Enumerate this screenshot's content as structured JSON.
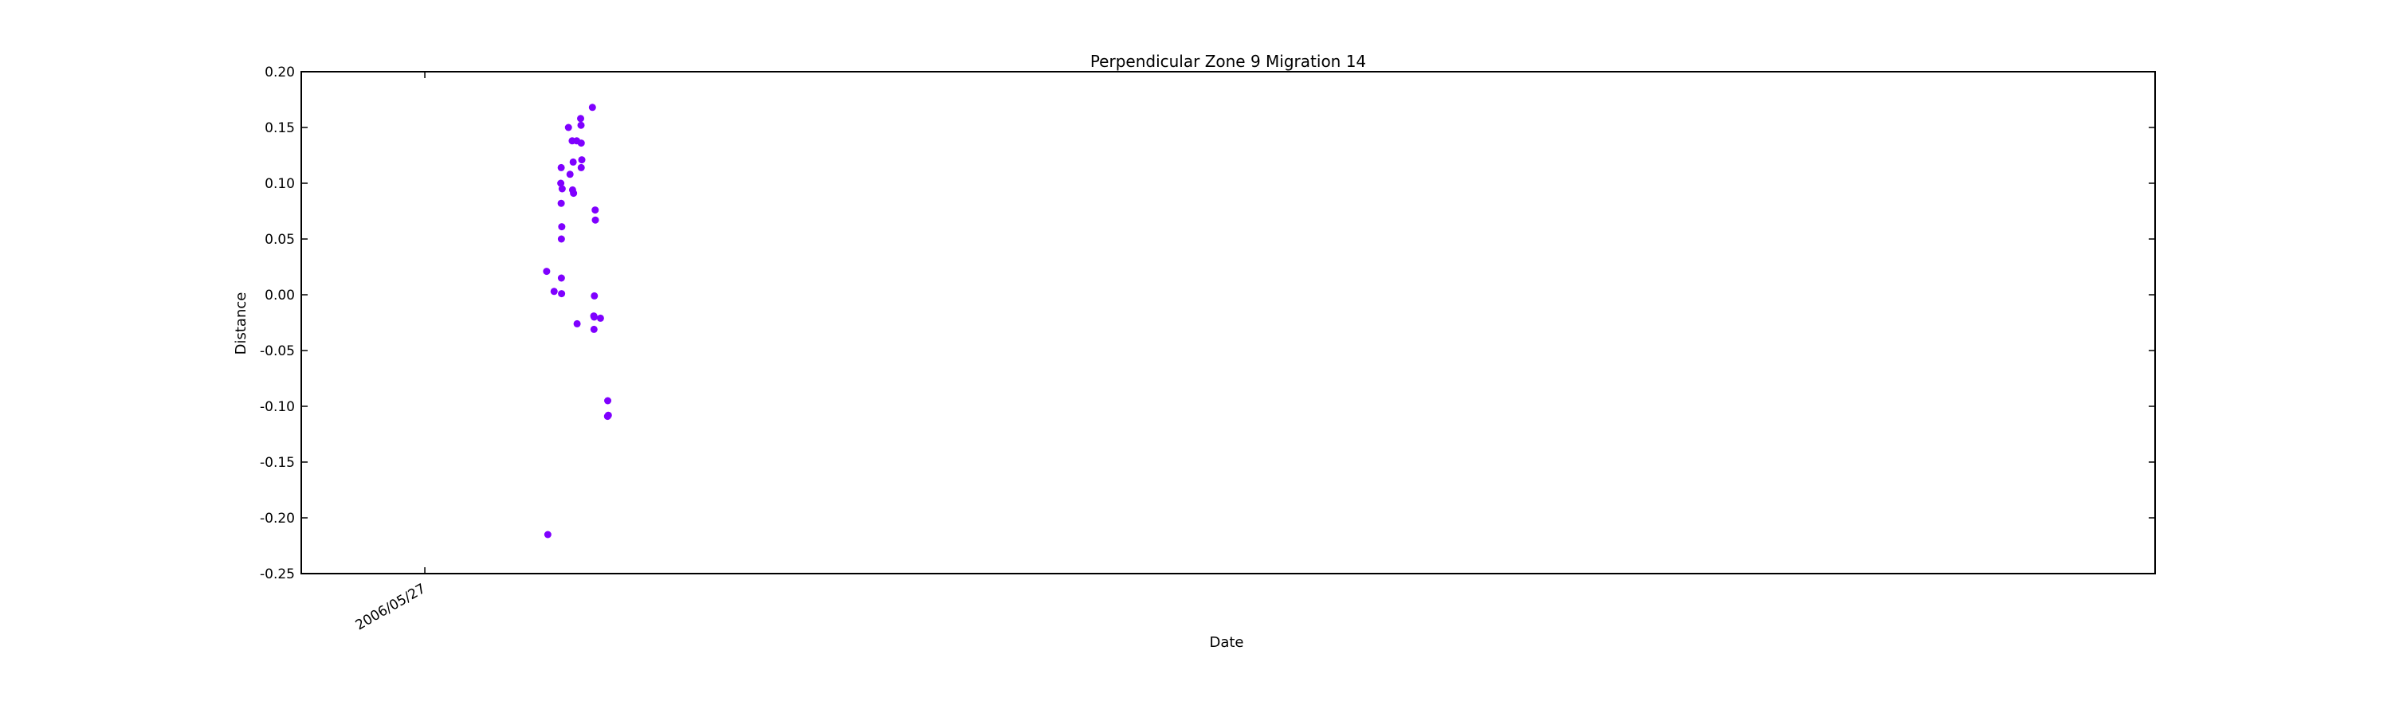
{
  "chart_data": {
    "type": "scatter",
    "title": "Perpendicular Zone 9 Migration 14",
    "xlabel": "Date",
    "ylabel": "Distance",
    "ylim": [
      -0.25,
      0.2
    ],
    "yticks": [
      "0.20",
      "0.15",
      "0.10",
      "0.05",
      "0.00",
      "-0.05",
      "-0.10",
      "-0.15",
      "-0.20",
      "-0.25"
    ],
    "xticks": [
      "2006/05/27"
    ],
    "grid": false,
    "marker_color": "#7f00ff",
    "points": [
      {
        "x": "2008/02/06",
        "y": 0.021
      },
      {
        "x": "2008/02/12",
        "y": -0.215
      },
      {
        "x": "2008/03/15",
        "y": 0.003
      },
      {
        "x": "2008/04/18",
        "y": 0.1
      },
      {
        "x": "2008/04/20",
        "y": 0.114
      },
      {
        "x": "2008/04/20",
        "y": 0.082
      },
      {
        "x": "2008/04/21",
        "y": 0.05
      },
      {
        "x": "2008/04/21",
        "y": 0.015
      },
      {
        "x": "2008/04/22",
        "y": 0.001
      },
      {
        "x": "2008/04/23",
        "y": 0.061
      },
      {
        "x": "2008/04/25",
        "y": 0.095
      },
      {
        "x": "2008/05/27",
        "y": 0.15
      },
      {
        "x": "2008/06/04",
        "y": 0.108
      },
      {
        "x": "2008/06/15",
        "y": 0.138
      },
      {
        "x": "2008/06/17",
        "y": 0.094
      },
      {
        "x": "2008/06/20",
        "y": 0.119
      },
      {
        "x": "2008/06/22",
        "y": 0.091
      },
      {
        "x": "2008/07/08",
        "y": 0.138
      },
      {
        "x": "2008/07/10",
        "y": -0.026
      },
      {
        "x": "2008/07/28",
        "y": 0.158
      },
      {
        "x": "2008/07/30",
        "y": 0.152
      },
      {
        "x": "2008/07/31",
        "y": 0.136
      },
      {
        "x": "2008/07/31",
        "y": 0.114
      },
      {
        "x": "2008/08/03",
        "y": 0.121
      },
      {
        "x": "2008/09/26",
        "y": 0.168
      },
      {
        "x": "2008/10/03",
        "y": -0.019
      },
      {
        "x": "2008/10/04",
        "y": -0.031
      },
      {
        "x": "2008/10/05",
        "y": -0.02
      },
      {
        "x": "2008/10/06",
        "y": -0.001
      },
      {
        "x": "2008/10/10",
        "y": 0.076
      },
      {
        "x": "2008/10/11",
        "y": 0.067
      },
      {
        "x": "2008/11/06",
        "y": -0.021
      },
      {
        "x": "2008/12/12",
        "y": -0.109
      },
      {
        "x": "2008/12/13",
        "y": -0.095
      },
      {
        "x": "2008/12/16",
        "y": -0.108
      }
    ]
  }
}
